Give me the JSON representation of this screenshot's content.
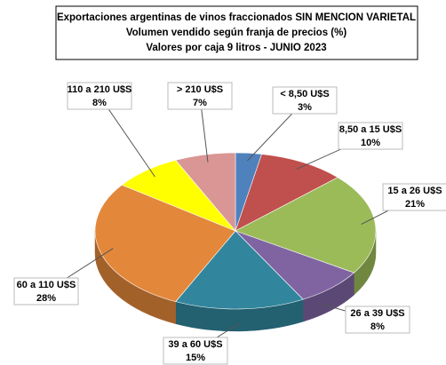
{
  "chart_data": {
    "type": "pie",
    "title": [
      "Exportaciones argentinas de vinos fraccionados SIN MENCION VARIETAL",
      "Volumen vendido según franja de precios (%)",
      "Valores por caja 9 litros - JUNIO 2023"
    ],
    "categories": [
      "< 8,50 U$S",
      "8,50 a 15 U$S",
      "15 a 26 U$S",
      "26 a 39 U$S",
      "39 a 60 U$S",
      "60 a 110 U$S",
      "110 a 210 U$S",
      "> 210 U$S"
    ],
    "values": [
      3,
      10,
      21,
      8,
      15,
      28,
      8,
      7
    ],
    "value_labels": [
      "3%",
      "10%",
      "21%",
      "8%",
      "15%",
      "28%",
      "8%",
      "7%"
    ],
    "colors": [
      "#4f81bd",
      "#c0504d",
      "#9bbb59",
      "#8064a2",
      "#31859c",
      "#e3873a",
      "#ffff00",
      "#d99694"
    ]
  }
}
